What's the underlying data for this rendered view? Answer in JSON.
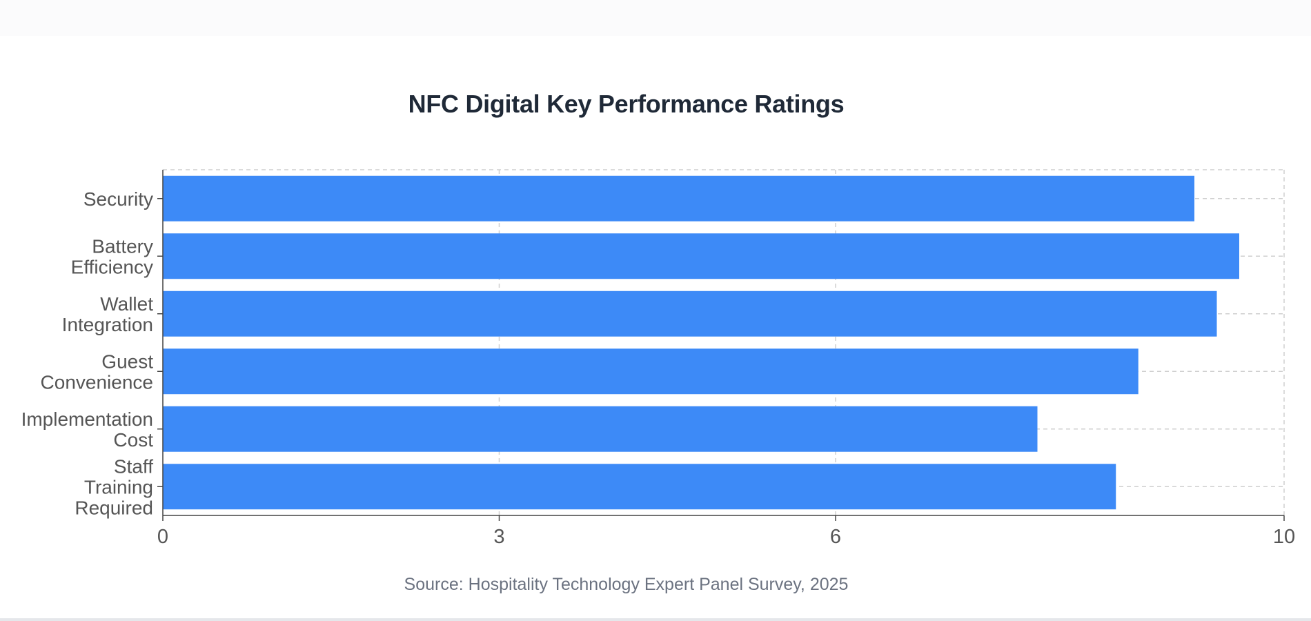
{
  "chart_data": {
    "type": "bar",
    "orientation": "horizontal",
    "title": "NFC Digital Key Performance Ratings",
    "categories": [
      [
        "Security"
      ],
      [
        "Battery",
        "Efficiency"
      ],
      [
        "Wallet",
        "Integration"
      ],
      [
        "Guest",
        "Convenience"
      ],
      [
        "Implementation",
        "Cost"
      ],
      [
        "Staff",
        "Training",
        "Required"
      ]
    ],
    "values": [
      9.2,
      9.6,
      9.4,
      8.7,
      7.8,
      8.5
    ],
    "xlim": [
      0,
      10
    ],
    "xticks": [
      0,
      3,
      6,
      10
    ],
    "grid": true,
    "bar_color": "#3d8af7",
    "xlabel": "",
    "ylabel": ""
  },
  "footer": {
    "source": "Source: Hospitality Technology Expert Panel Survey, 2025"
  }
}
